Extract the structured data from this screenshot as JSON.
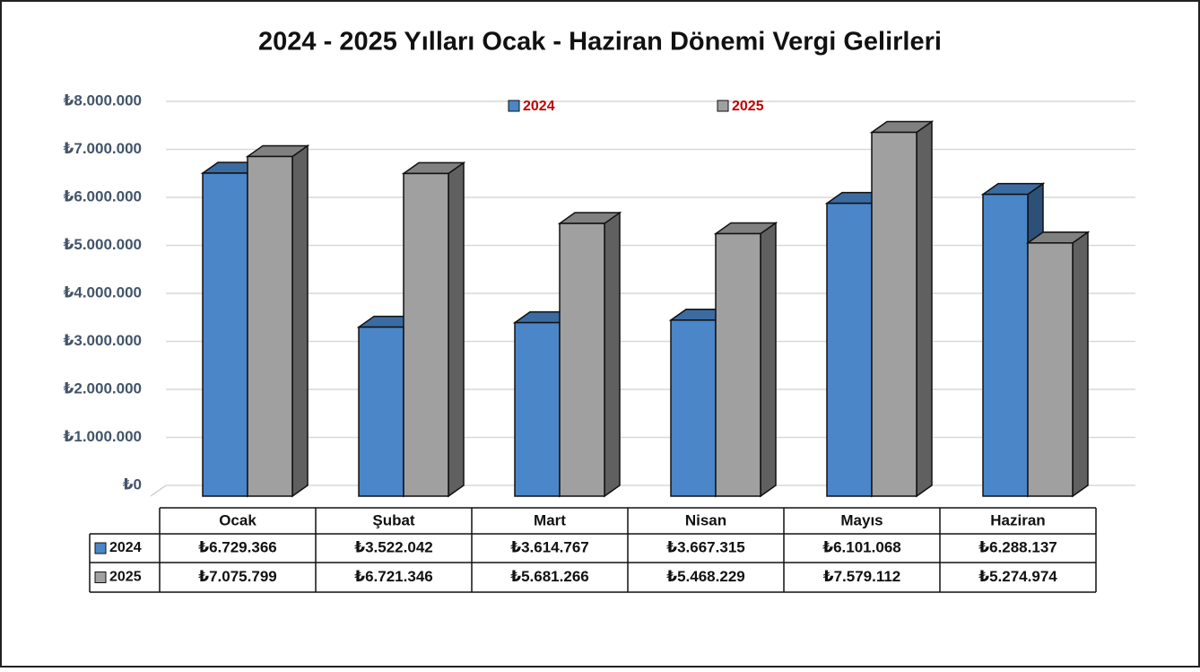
{
  "chart_data": {
    "type": "bar3d",
    "title": "2024 - 2025 Yılları Ocak - Haziran Dönemi Vergi Gelirleri",
    "categories": [
      "Ocak",
      "Şubat",
      "Mart",
      "Nisan",
      "Mayıs",
      "Haziran"
    ],
    "series": [
      {
        "name": "2024",
        "color": "#4a86c8",
        "values": [
          6729366,
          3522042,
          3614767,
          3667315,
          6101068,
          6288137
        ],
        "value_labels": [
          "₺6.729.366",
          "₺3.522.042",
          "₺3.614.767",
          "₺3.667.315",
          "₺6.101.068",
          "₺6.288.137"
        ]
      },
      {
        "name": "2025",
        "color": "#a0a0a0",
        "values": [
          7075799,
          6721346,
          5681266,
          5468229,
          7579112,
          5274974
        ],
        "value_labels": [
          "₺7.075.799",
          "₺6.721.346",
          "₺5.681.266",
          "₺5.468.229",
          "₺7.579.112",
          "₺5.274.974"
        ]
      }
    ],
    "ylim": [
      0,
      8000000
    ],
    "yticks": [
      {
        "value": 0,
        "label": "₺0"
      },
      {
        "value": 1000000,
        "label": "₺1.000.000"
      },
      {
        "value": 2000000,
        "label": "₺2.000.000"
      },
      {
        "value": 3000000,
        "label": "₺3.000.000"
      },
      {
        "value": 4000000,
        "label": "₺4.000.000"
      },
      {
        "value": 5000000,
        "label": "₺5.000.000"
      },
      {
        "value": 6000000,
        "label": "₺6.000.000"
      },
      {
        "value": 7000000,
        "label": "₺7.000.000"
      },
      {
        "value": 8000000,
        "label": "₺8.000.000"
      }
    ],
    "grid": true,
    "legend": "top",
    "data_table": true
  }
}
